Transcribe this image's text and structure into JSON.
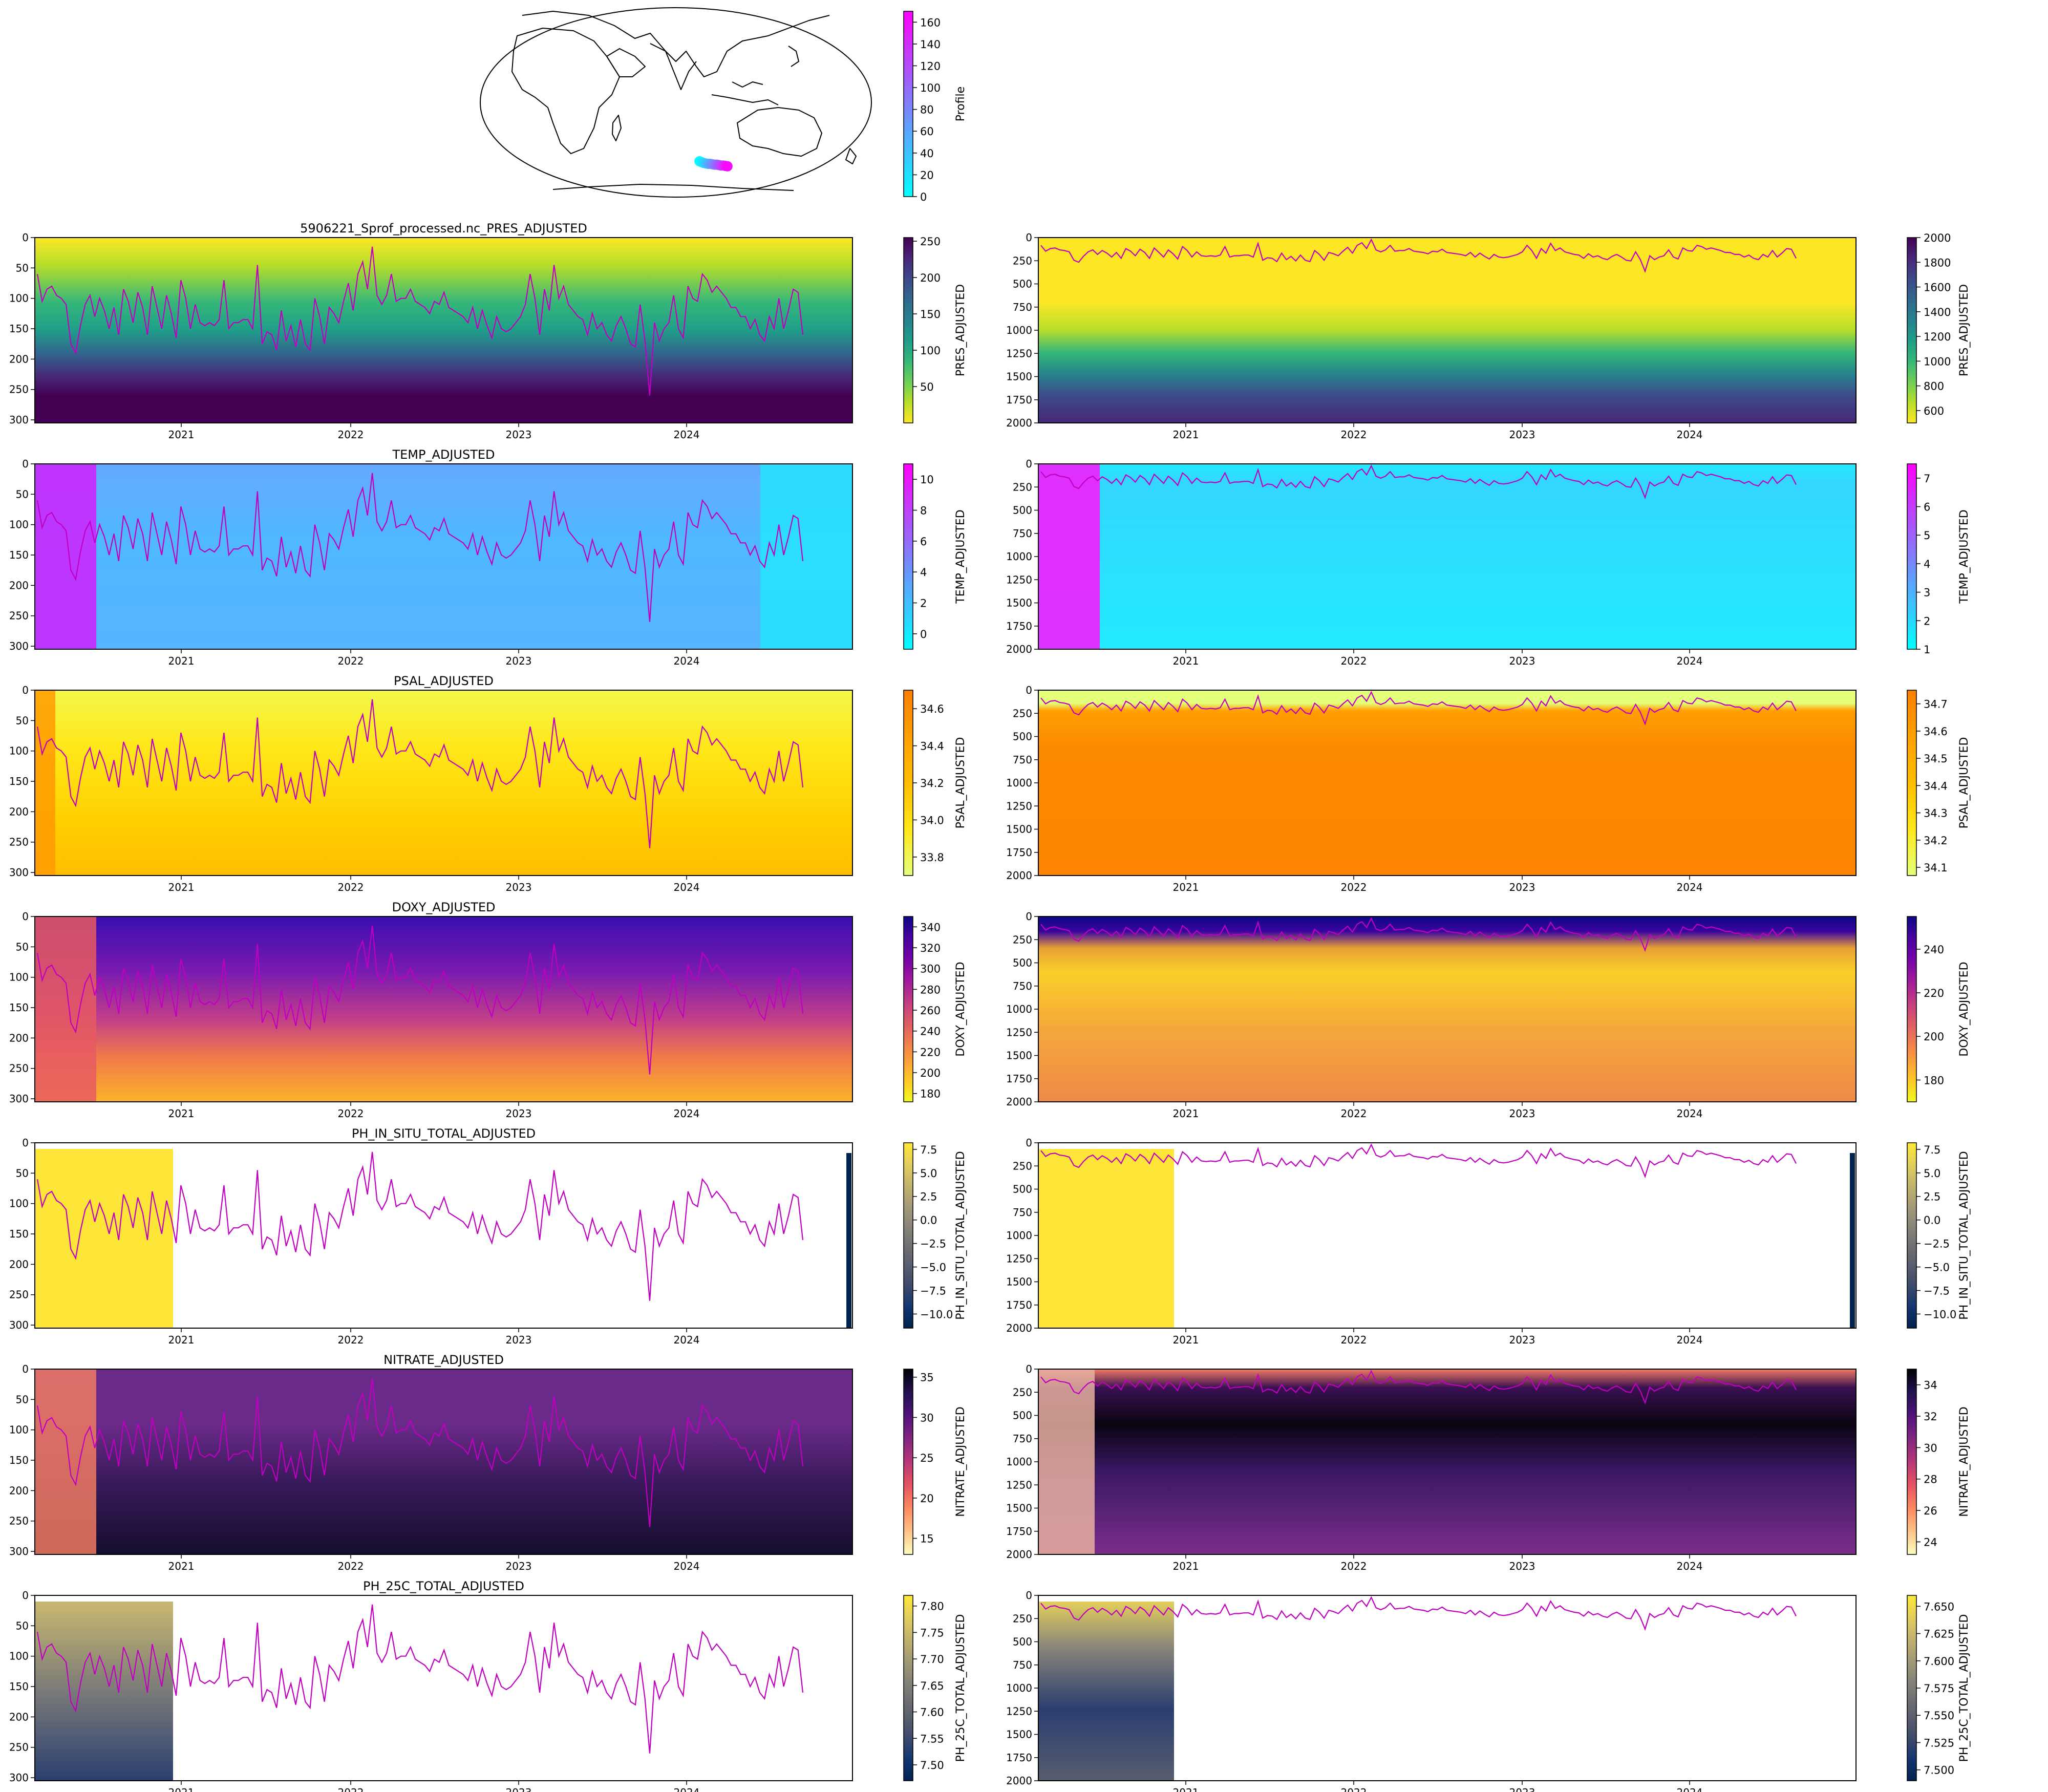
{
  "map": {
    "colorbar": {
      "label": "Profile",
      "ticks": [
        0,
        20,
        40,
        60,
        80,
        100,
        120,
        140,
        160
      ],
      "range": [
        0,
        170
      ],
      "colormap": "cool"
    },
    "track": {
      "lon": [
        122,
        124,
        126,
        128,
        130,
        132,
        134,
        136,
        138,
        140,
        142,
        144,
        146,
        148
      ],
      "lat": [
        -52,
        -53,
        -54,
        -54.5,
        -55,
        -55,
        -55.5,
        -56,
        -56,
        -56.5,
        -57,
        -57,
        -57.5,
        -58
      ],
      "profile": [
        0,
        12,
        25,
        37,
        50,
        62,
        75,
        87,
        100,
        112,
        125,
        137,
        150,
        165
      ]
    }
  },
  "time_axis": {
    "ticks": [
      "2021",
      "2022",
      "2023",
      "2024"
    ]
  },
  "chart_data": [
    {
      "type": "heatmap",
      "title": "5906221_Sprof_processed.nc_PRES_ADJUSTED",
      "ylabel": "",
      "xlabel": "",
      "ylim": [
        305,
        0
      ],
      "y_ticks": [
        0,
        50,
        100,
        150,
        200,
        250,
        300
      ],
      "colorbar": {
        "label": "PRES_ADJUSTED",
        "ticks": [
          50,
          100,
          150,
          200,
          250
        ],
        "range": [
          0,
          255
        ],
        "colormap": "viridis_r"
      }
    },
    {
      "type": "heatmap",
      "title": "",
      "ylim": [
        2000,
        0
      ],
      "y_ticks": [
        0,
        250,
        500,
        750,
        1000,
        1250,
        1500,
        1750,
        2000
      ],
      "colorbar": {
        "label": "PRES_ADJUSTED",
        "ticks": [
          600,
          800,
          1000,
          1200,
          1400,
          1600,
          1800,
          2000
        ],
        "range": [
          500,
          2000
        ],
        "colormap": "viridis_r"
      }
    },
    {
      "type": "heatmap",
      "title": "TEMP_ADJUSTED",
      "ylim": [
        305,
        0
      ],
      "y_ticks": [
        0,
        50,
        100,
        150,
        200,
        250,
        300
      ],
      "colorbar": {
        "label": "TEMP_ADJUSTED",
        "ticks": [
          0,
          2,
          4,
          6,
          8,
          10
        ],
        "range": [
          -1,
          11
        ],
        "colormap": "cool"
      }
    },
    {
      "type": "heatmap",
      "title": "",
      "ylim": [
        2000,
        0
      ],
      "y_ticks": [
        0,
        250,
        500,
        750,
        1000,
        1250,
        1500,
        1750,
        2000
      ],
      "colorbar": {
        "label": "TEMP_ADJUSTED",
        "ticks": [
          1,
          2,
          3,
          4,
          5,
          6,
          7
        ],
        "range": [
          1,
          7.5
        ],
        "colormap": "cool"
      }
    },
    {
      "type": "heatmap",
      "title": "PSAL_ADJUSTED",
      "ylim": [
        305,
        0
      ],
      "y_ticks": [
        0,
        50,
        100,
        150,
        200,
        250,
        300
      ],
      "colorbar": {
        "label": "PSAL_ADJUSTED",
        "ticks": [
          33.8,
          34.0,
          34.2,
          34.4,
          34.6
        ],
        "tick_labels": [
          "33.8",
          "34.0",
          "34.2",
          "34.4",
          "34.6"
        ],
        "range": [
          33.7,
          34.7
        ],
        "colormap": "Wistia"
      }
    },
    {
      "type": "heatmap",
      "title": "",
      "ylim": [
        2000,
        0
      ],
      "y_ticks": [
        0,
        250,
        500,
        750,
        1000,
        1250,
        1500,
        1750,
        2000
      ],
      "colorbar": {
        "label": "PSAL_ADJUSTED",
        "ticks": [
          34.1,
          34.2,
          34.3,
          34.4,
          34.5,
          34.6,
          34.7
        ],
        "tick_labels": [
          "34.1",
          "34.2",
          "34.3",
          "34.4",
          "34.5",
          "34.6",
          "34.7"
        ],
        "range": [
          34.07,
          34.75
        ],
        "colormap": "Wistia"
      }
    },
    {
      "type": "heatmap",
      "title": "DOXY_ADJUSTED",
      "ylim": [
        305,
        0
      ],
      "y_ticks": [
        0,
        50,
        100,
        150,
        200,
        250,
        300
      ],
      "colorbar": {
        "label": "DOXY_ADJUSTED",
        "ticks": [
          180,
          200,
          220,
          240,
          260,
          280,
          300,
          320,
          340
        ],
        "range": [
          172,
          350
        ],
        "colormap": "plasma_r"
      }
    },
    {
      "type": "heatmap",
      "title": "",
      "ylim": [
        2000,
        0
      ],
      "y_ticks": [
        0,
        250,
        500,
        750,
        1000,
        1250,
        1500,
        1750,
        2000
      ],
      "colorbar": {
        "label": "DOXY_ADJUSTED",
        "ticks": [
          180,
          200,
          220,
          240
        ],
        "range": [
          170,
          255
        ],
        "colormap": "plasma_r"
      }
    },
    {
      "type": "heatmap",
      "title": "PH_IN_SITU_TOTAL_ADJUSTED",
      "ylim": [
        305,
        0
      ],
      "y_ticks": [
        0,
        50,
        100,
        150,
        200,
        250,
        300
      ],
      "colorbar": {
        "label": "PH_IN_SITU_TOTAL_ADJUSTED",
        "ticks": [
          7.5,
          5.0,
          2.5,
          0.0,
          -2.5,
          -5.0,
          -7.5,
          -10.0
        ],
        "tick_labels": [
          "7.5",
          "5.0",
          "2.5",
          "0.0",
          "−2.5",
          "−5.0",
          "−7.5",
          "−10.0"
        ],
        "range": [
          -11.5,
          8.2
        ],
        "colormap": "cividis"
      }
    },
    {
      "type": "heatmap",
      "title": "",
      "ylim": [
        2000,
        0
      ],
      "y_ticks": [
        0,
        250,
        500,
        750,
        1000,
        1250,
        1500,
        1750,
        2000
      ],
      "colorbar": {
        "label": "PH_IN_SITU_TOTAL_ADJUSTED",
        "ticks": [
          7.5,
          5.0,
          2.5,
          0.0,
          -2.5,
          -5.0,
          -7.5,
          -10.0
        ],
        "tick_labels": [
          "7.5",
          "5.0",
          "2.5",
          "0.0",
          "−2.5",
          "−5.0",
          "−7.5",
          "−10.0"
        ],
        "range": [
          -11.5,
          8.2
        ],
        "colormap": "cividis"
      }
    },
    {
      "type": "heatmap",
      "title": "NITRATE_ADJUSTED",
      "ylim": [
        305,
        0
      ],
      "y_ticks": [
        0,
        50,
        100,
        150,
        200,
        250,
        300
      ],
      "colorbar": {
        "label": "NITRATE_ADJUSTED",
        "ticks": [
          15,
          20,
          25,
          30,
          35
        ],
        "range": [
          13,
          36
        ],
        "colormap": "magma_r"
      }
    },
    {
      "type": "heatmap",
      "title": "",
      "ylim": [
        2000,
        0
      ],
      "y_ticks": [
        0,
        250,
        500,
        750,
        1000,
        1250,
        1500,
        1750,
        2000
      ],
      "colorbar": {
        "label": "NITRATE_ADJUSTED",
        "ticks": [
          24,
          26,
          28,
          30,
          32,
          34
        ],
        "range": [
          23.2,
          35
        ],
        "colormap": "magma_r"
      }
    },
    {
      "type": "heatmap",
      "title": "PH_25C_TOTAL_ADJUSTED",
      "ylim": [
        305,
        0
      ],
      "y_ticks": [
        0,
        50,
        100,
        150,
        200,
        250,
        300
      ],
      "colorbar": {
        "label": "PH_25C_TOTAL_ADJUSTED",
        "ticks": [
          7.5,
          7.55,
          7.6,
          7.65,
          7.7,
          7.75,
          7.8
        ],
        "tick_labels": [
          "7.50",
          "7.55",
          "7.60",
          "7.65",
          "7.70",
          "7.75",
          "7.80"
        ],
        "range": [
          7.47,
          7.82
        ],
        "colormap": "cividis"
      }
    },
    {
      "type": "heatmap",
      "title": "",
      "ylim": [
        2000,
        0
      ],
      "y_ticks": [
        0,
        250,
        500,
        750,
        1000,
        1250,
        1500,
        1750,
        2000
      ],
      "colorbar": {
        "label": "PH_25C_TOTAL_ADJUSTED",
        "ticks": [
          7.5,
          7.525,
          7.55,
          7.575,
          7.6,
          7.625,
          7.65
        ],
        "tick_labels": [
          "7.500",
          "7.525",
          "7.550",
          "7.575",
          "7.600",
          "7.625",
          "7.650"
        ],
        "range": [
          7.49,
          7.66
        ],
        "colormap": "cividis"
      }
    }
  ],
  "mld_line": {
    "color": "#c000c0",
    "depths": [
      60,
      105,
      85,
      80,
      95,
      100,
      110,
      175,
      190,
      145,
      110,
      95,
      130,
      100,
      120,
      150,
      115,
      160,
      85,
      105,
      140,
      90,
      115,
      160,
      80,
      115,
      150,
      95,
      125,
      165,
      70,
      100,
      150,
      110,
      140,
      145,
      140,
      145,
      135,
      70,
      150,
      140,
      140,
      135,
      135,
      150,
      45,
      175,
      155,
      160,
      185,
      120,
      170,
      145,
      180,
      135,
      175,
      185,
      100,
      130,
      175,
      115,
      125,
      140,
      105,
      75,
      120,
      60,
      40,
      85,
      15,
      95,
      110,
      95,
      60,
      105,
      100,
      100,
      85,
      105,
      110,
      115,
      125,
      105,
      110,
      90,
      115,
      120,
      125,
      130,
      140,
      115,
      150,
      120,
      145,
      165,
      130,
      150,
      155,
      150,
      140,
      130,
      110,
      60,
      100,
      160,
      85,
      120,
      45,
      100,
      80,
      110,
      120,
      130,
      135,
      160,
      125,
      150,
      140,
      160,
      170,
      145,
      130,
      150,
      175,
      180,
      110,
      170,
      260,
      140,
      170,
      150,
      140,
      95,
      150,
      165,
      80,
      100,
      105,
      60,
      70,
      90,
      80,
      90,
      100,
      115,
      115,
      130,
      130,
      150,
      135,
      160,
      170,
      130,
      150,
      100,
      150,
      120,
      85,
      90,
      160
    ]
  }
}
